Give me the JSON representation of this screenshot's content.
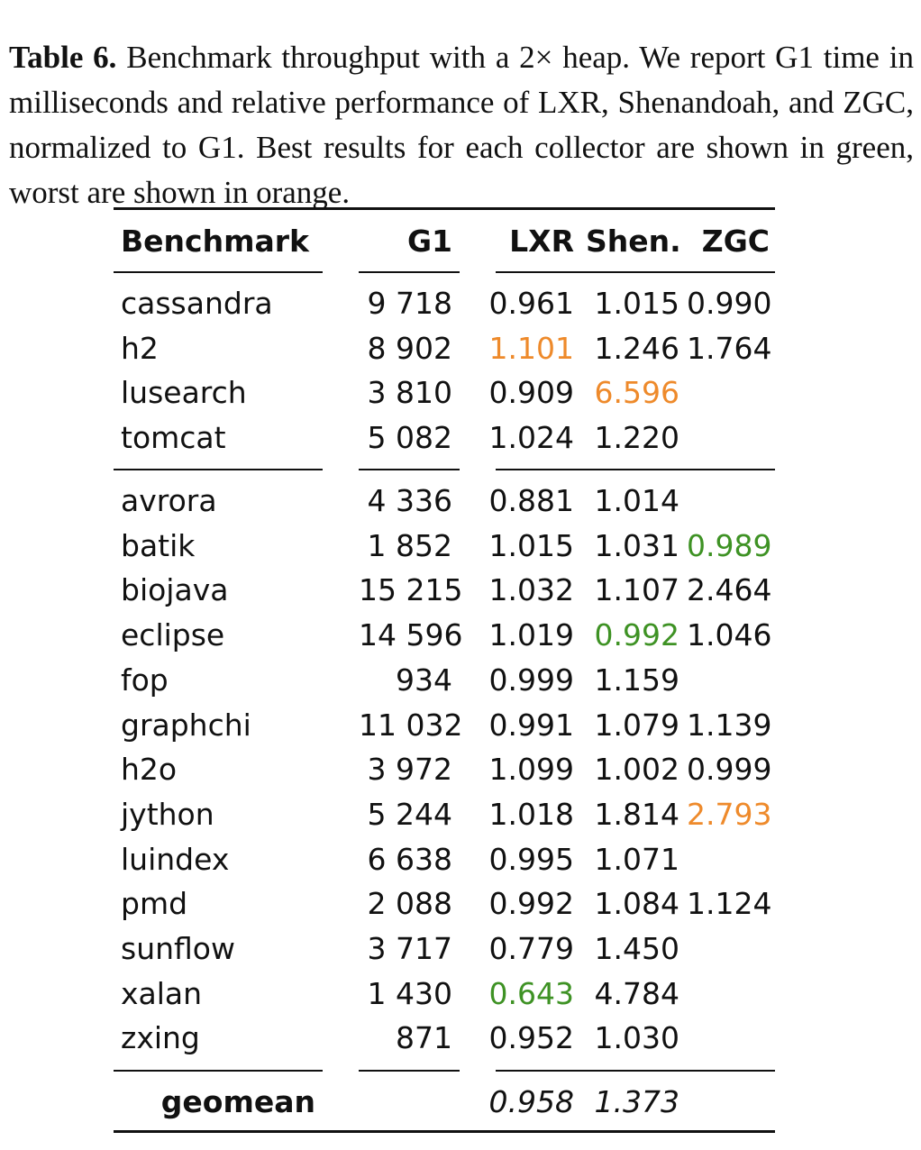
{
  "caption": {
    "label": "Table 6.",
    "text": "Benchmark throughput with a 2× heap. We report G1 time in milliseconds and relative performance of LXR, Shenandoah, and ZGC, normalized to G1. Best results for each collector are shown in green, worst are shown in orange."
  },
  "colors": {
    "best": "#3e9224",
    "worst": "#ee8a2b"
  },
  "table": {
    "headers": {
      "benchmark": "Benchmark",
      "g1": "G1",
      "lxr": "LXR",
      "shen": "Shen.",
      "zgc": "ZGC"
    },
    "groups": [
      {
        "rows": [
          {
            "benchmark": "cassandra",
            "g1": "9 718",
            "lxr": "0.961",
            "shen": "1.015",
            "zgc": "0.990"
          },
          {
            "benchmark": "h2",
            "g1": "8 902",
            "lxr": "1.101",
            "shen": "1.246",
            "zgc": "1.764",
            "lxr_mark": "worst"
          },
          {
            "benchmark": "lusearch",
            "g1": "3 810",
            "lxr": "0.909",
            "shen": "6.596",
            "zgc": "",
            "shen_mark": "worst"
          },
          {
            "benchmark": "tomcat",
            "g1": "5 082",
            "lxr": "1.024",
            "shen": "1.220",
            "zgc": ""
          }
        ]
      },
      {
        "rows": [
          {
            "benchmark": "avrora",
            "g1": "4 336",
            "lxr": "0.881",
            "shen": "1.014",
            "zgc": ""
          },
          {
            "benchmark": "batik",
            "g1": "1 852",
            "lxr": "1.015",
            "shen": "1.031",
            "zgc": "0.989",
            "zgc_mark": "best"
          },
          {
            "benchmark": "biojava",
            "g1": "15 215",
            "lxr": "1.032",
            "shen": "1.107",
            "zgc": "2.464"
          },
          {
            "benchmark": "eclipse",
            "g1": "14 596",
            "lxr": "1.019",
            "shen": "0.992",
            "zgc": "1.046",
            "shen_mark": "best"
          },
          {
            "benchmark": "fop",
            "g1": "934",
            "lxr": "0.999",
            "shen": "1.159",
            "zgc": ""
          },
          {
            "benchmark": "graphchi",
            "g1": "11 032",
            "lxr": "0.991",
            "shen": "1.079",
            "zgc": "1.139"
          },
          {
            "benchmark": "h2o",
            "g1": "3 972",
            "lxr": "1.099",
            "shen": "1.002",
            "zgc": "0.999"
          },
          {
            "benchmark": "jython",
            "g1": "5 244",
            "lxr": "1.018",
            "shen": "1.814",
            "zgc": "2.793",
            "zgc_mark": "worst"
          },
          {
            "benchmark": "luindex",
            "g1": "6 638",
            "lxr": "0.995",
            "shen": "1.071",
            "zgc": ""
          },
          {
            "benchmark": "pmd",
            "g1": "2 088",
            "lxr": "0.992",
            "shen": "1.084",
            "zgc": "1.124"
          },
          {
            "benchmark": "sunflow",
            "g1": "3 717",
            "lxr": "0.779",
            "shen": "1.450",
            "zgc": ""
          },
          {
            "benchmark": "xalan",
            "g1": "1 430",
            "lxr": "0.643",
            "shen": "4.784",
            "zgc": "",
            "lxr_mark": "best"
          },
          {
            "benchmark": "zxing",
            "g1": "871",
            "lxr": "0.952",
            "shen": "1.030",
            "zgc": ""
          }
        ]
      }
    ],
    "geomean": {
      "label": "geomean",
      "g1": "",
      "lxr": "0.958",
      "shen": "1.373",
      "zgc": ""
    }
  }
}
